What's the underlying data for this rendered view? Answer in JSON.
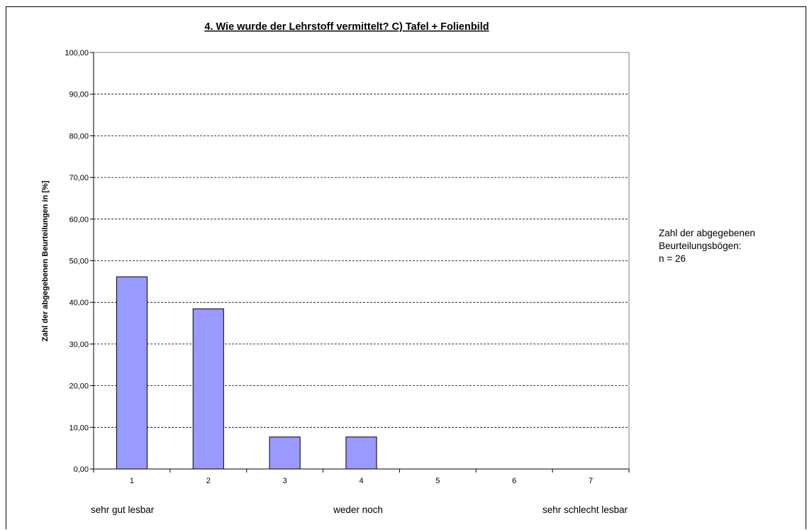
{
  "chart_data": {
    "type": "bar",
    "title": "4. Wie wurde der Lehrstoff vermittelt?    C) Tafel + Folienbild",
    "ylabel": "Zahl der abgegebenen Beurteilungen in [%]",
    "xlabel": "",
    "categories": [
      "1",
      "2",
      "3",
      "4",
      "5",
      "6",
      "7"
    ],
    "values": [
      46.15,
      38.46,
      7.69,
      7.69,
      0,
      0,
      0
    ],
    "ylim": [
      0,
      100
    ],
    "yticks": [
      "0,00",
      "10,00",
      "20,00",
      "30,00",
      "40,00",
      "50,00",
      "60,00",
      "70,00",
      "80,00",
      "90,00",
      "100,00"
    ],
    "grid": true,
    "bar_color": "#9999ff",
    "x_scale_labels": [
      "sehr gut lesbar",
      "weder noch",
      "sehr schlecht lesbar"
    ],
    "annotation": [
      "Zahl der abgegebenen",
      "Beurteilungsbögen:",
      "n = 26"
    ]
  }
}
